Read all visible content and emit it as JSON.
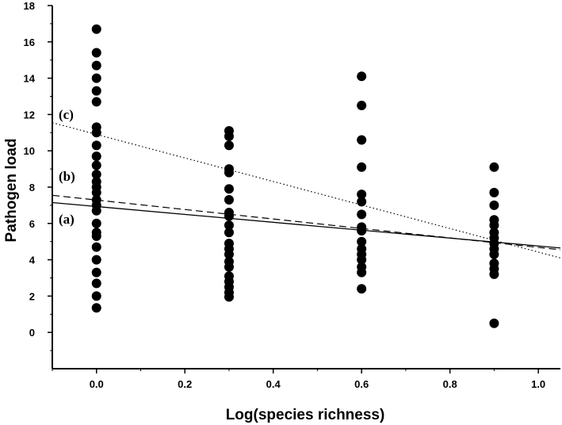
{
  "chart_data": {
    "type": "scatter",
    "xlabel": "Log(species richness)",
    "ylabel": "Pathogen load",
    "xlim": [
      -0.1,
      1.05
    ],
    "ylim": [
      -2,
      18
    ],
    "xticks": [
      "0.0",
      "0.2",
      "0.4",
      "0.6",
      "0.8",
      "1.0"
    ],
    "yticks": [
      "0",
      "2",
      "4",
      "6",
      "8",
      "10",
      "12",
      "14",
      "16",
      "18"
    ],
    "grid": false,
    "points": [
      {
        "x": 0.0,
        "y": 16.7
      },
      {
        "x": 0.0,
        "y": 15.4
      },
      {
        "x": 0.0,
        "y": 14.7
      },
      {
        "x": 0.0,
        "y": 14.0
      },
      {
        "x": 0.0,
        "y": 13.3
      },
      {
        "x": 0.0,
        "y": 12.7
      },
      {
        "x": 0.0,
        "y": 11.3
      },
      {
        "x": 0.0,
        "y": 11.0
      },
      {
        "x": 0.0,
        "y": 10.3
      },
      {
        "x": 0.0,
        "y": 9.7
      },
      {
        "x": 0.0,
        "y": 9.2
      },
      {
        "x": 0.0,
        "y": 8.7
      },
      {
        "x": 0.0,
        "y": 8.3
      },
      {
        "x": 0.0,
        "y": 8.0
      },
      {
        "x": 0.0,
        "y": 7.7
      },
      {
        "x": 0.0,
        "y": 7.3
      },
      {
        "x": 0.0,
        "y": 7.0
      },
      {
        "x": 0.0,
        "y": 6.7
      },
      {
        "x": 0.0,
        "y": 6.0
      },
      {
        "x": 0.0,
        "y": 5.5
      },
      {
        "x": 0.0,
        "y": 5.3
      },
      {
        "x": 0.0,
        "y": 4.7
      },
      {
        "x": 0.0,
        "y": 4.0
      },
      {
        "x": 0.0,
        "y": 3.3
      },
      {
        "x": 0.0,
        "y": 2.7
      },
      {
        "x": 0.0,
        "y": 2.0
      },
      {
        "x": 0.0,
        "y": 1.35
      },
      {
        "x": 0.3,
        "y": 11.1
      },
      {
        "x": 0.3,
        "y": 10.8
      },
      {
        "x": 0.3,
        "y": 10.3
      },
      {
        "x": 0.3,
        "y": 9.0
      },
      {
        "x": 0.3,
        "y": 8.8
      },
      {
        "x": 0.3,
        "y": 7.9
      },
      {
        "x": 0.3,
        "y": 7.3
      },
      {
        "x": 0.3,
        "y": 6.6
      },
      {
        "x": 0.3,
        "y": 6.4
      },
      {
        "x": 0.3,
        "y": 5.9
      },
      {
        "x": 0.3,
        "y": 5.5
      },
      {
        "x": 0.3,
        "y": 4.9
      },
      {
        "x": 0.3,
        "y": 4.6
      },
      {
        "x": 0.3,
        "y": 4.3
      },
      {
        "x": 0.3,
        "y": 3.9
      },
      {
        "x": 0.3,
        "y": 3.6
      },
      {
        "x": 0.3,
        "y": 3.1
      },
      {
        "x": 0.3,
        "y": 2.8
      },
      {
        "x": 0.3,
        "y": 2.5
      },
      {
        "x": 0.3,
        "y": 2.2
      },
      {
        "x": 0.3,
        "y": 1.95
      },
      {
        "x": 0.6,
        "y": 14.1
      },
      {
        "x": 0.6,
        "y": 12.5
      },
      {
        "x": 0.6,
        "y": 10.6
      },
      {
        "x": 0.6,
        "y": 9.1
      },
      {
        "x": 0.6,
        "y": 7.6
      },
      {
        "x": 0.6,
        "y": 7.2
      },
      {
        "x": 0.6,
        "y": 6.5
      },
      {
        "x": 0.6,
        "y": 5.8
      },
      {
        "x": 0.6,
        "y": 5.6
      },
      {
        "x": 0.6,
        "y": 5.0
      },
      {
        "x": 0.6,
        "y": 4.6
      },
      {
        "x": 0.6,
        "y": 4.3
      },
      {
        "x": 0.6,
        "y": 4.0
      },
      {
        "x": 0.6,
        "y": 3.6
      },
      {
        "x": 0.6,
        "y": 3.3
      },
      {
        "x": 0.6,
        "y": 2.4
      },
      {
        "x": 0.9,
        "y": 9.1
      },
      {
        "x": 0.9,
        "y": 7.7
      },
      {
        "x": 0.9,
        "y": 7.0
      },
      {
        "x": 0.9,
        "y": 6.2
      },
      {
        "x": 0.9,
        "y": 5.9
      },
      {
        "x": 0.9,
        "y": 5.5
      },
      {
        "x": 0.9,
        "y": 5.2
      },
      {
        "x": 0.9,
        "y": 4.9
      },
      {
        "x": 0.9,
        "y": 4.6
      },
      {
        "x": 0.9,
        "y": 4.3
      },
      {
        "x": 0.9,
        "y": 3.8
      },
      {
        "x": 0.9,
        "y": 3.5
      },
      {
        "x": 0.9,
        "y": 3.2
      },
      {
        "x": 0.9,
        "y": 0.5
      }
    ],
    "lines": [
      {
        "label": "(a)",
        "style": "solid",
        "x": [
          -0.1,
          1.05
        ],
        "y": [
          7.15,
          4.65
        ]
      },
      {
        "label": "(b)",
        "style": "dashed",
        "x": [
          -0.1,
          1.05
        ],
        "y": [
          7.55,
          4.55
        ]
      },
      {
        "label": "(c)",
        "style": "dotted",
        "x": [
          -0.1,
          1.05
        ],
        "y": [
          11.55,
          4.1
        ]
      }
    ]
  }
}
